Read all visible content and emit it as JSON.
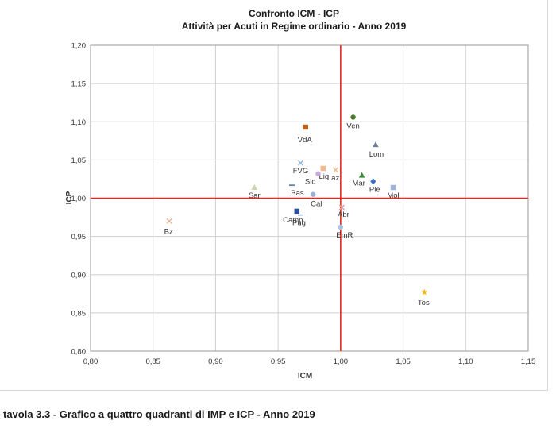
{
  "caption": "tavola 3.3 - Grafico a quattro quadranti di IMP e ICP - Anno 2019",
  "chart_data": {
    "type": "scatter",
    "title": "Confronto ICM - ICP",
    "subtitle": "Attività per Acuti in Regime ordinario - Anno 2019",
    "xlabel": "ICM",
    "ylabel": "ICP",
    "xlim": [
      0.8,
      1.15
    ],
    "ylim": [
      0.8,
      1.2
    ],
    "x_ticks": [
      "0,80",
      "0,85",
      "0,90",
      "0,95",
      "1,00",
      "1,05",
      "1,10",
      "1,15"
    ],
    "y_ticks": [
      "0,80",
      "0,85",
      "0,90",
      "0,95",
      "1,00",
      "1,05",
      "1,10",
      "1,15",
      "1,20"
    ],
    "grid": true,
    "reference_lines": {
      "x": 1.0,
      "y": 1.0,
      "color": "#e8261c"
    },
    "points": [
      {
        "label": "Ven",
        "x": 1.01,
        "y": 1.106,
        "marker": "circle",
        "color": "#4a7a2c"
      },
      {
        "label": "VdA",
        "x": 0.972,
        "y": 1.093,
        "marker": "square",
        "color": "#c0621f"
      },
      {
        "label": "Lom",
        "x": 1.028,
        "y": 1.07,
        "marker": "triangle",
        "color": "#6b7f96"
      },
      {
        "label": "FVG",
        "x": 0.968,
        "y": 1.046,
        "marker": "x",
        "color": "#8fb4dc"
      },
      {
        "label": "Lig",
        "x": 0.986,
        "y": 1.039,
        "marker": "square",
        "color": "#f2b98c"
      },
      {
        "label": "Laz",
        "x": 0.996,
        "y": 1.037,
        "marker": "x",
        "color": "#f2b98c"
      },
      {
        "label": "Sic",
        "x": 0.982,
        "y": 1.032,
        "marker": "circle",
        "color": "#c9a8e0"
      },
      {
        "label": "Mar",
        "x": 1.017,
        "y": 1.03,
        "marker": "triangle",
        "color": "#3d8a3d"
      },
      {
        "label": "Ple",
        "x": 1.026,
        "y": 1.022,
        "marker": "diamond",
        "color": "#3a6fc0"
      },
      {
        "label": "Mol",
        "x": 1.042,
        "y": 1.014,
        "marker": "square",
        "color": "#9cb4d8"
      },
      {
        "label": "Sar",
        "x": 0.931,
        "y": 1.014,
        "marker": "triangle",
        "color": "#c6d8a8"
      },
      {
        "label": "Bas",
        "x": 0.961,
        "y": 1.017,
        "marker": "dash",
        "color": "#4a78b8"
      },
      {
        "label": "Cal",
        "x": 0.978,
        "y": 1.005,
        "marker": "circle",
        "color": "#9cb4d8"
      },
      {
        "label": "Camp",
        "x": 0.965,
        "y": 0.983,
        "marker": "square",
        "color": "#2b4f9c"
      },
      {
        "label": "Pug",
        "x": 0.968,
        "y": 0.978,
        "marker": "dash",
        "color": "#9cb4d8"
      },
      {
        "label": "Abr",
        "x": 1.001,
        "y": 0.988,
        "marker": "x",
        "color": "#e89a9a"
      },
      {
        "label": "EmR",
        "x": 1.0,
        "y": 0.962,
        "marker": "circle",
        "color": "#a8c4e4"
      },
      {
        "label": "Tos",
        "x": 1.067,
        "y": 0.877,
        "marker": "star",
        "color": "#f2b40d"
      },
      {
        "label": "Bz",
        "x": 0.863,
        "y": 0.97,
        "marker": "x",
        "color": "#e8b896"
      }
    ]
  }
}
